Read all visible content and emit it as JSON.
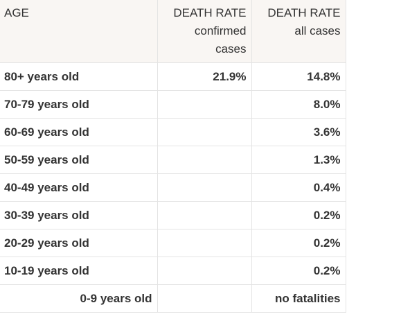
{
  "table": {
    "headers": {
      "age": "AGE",
      "confirmed": {
        "title": "DEATH RATE",
        "line2": "confirmed",
        "line3": "cases"
      },
      "all": {
        "title": "DEATH RATE",
        "line2": "all cases"
      }
    },
    "rows": [
      {
        "age": "80+ years old",
        "confirmed": "21.9%",
        "all": "14.8%"
      },
      {
        "age": "70-79 years old",
        "confirmed": "",
        "all": "8.0%"
      },
      {
        "age": "60-69 years old",
        "confirmed": "",
        "all": "3.6%"
      },
      {
        "age": "50-59 years old",
        "confirmed": "",
        "all": "1.3%"
      },
      {
        "age": "40-49 years old",
        "confirmed": "",
        "all": "0.4%"
      },
      {
        "age": "30-39 years old",
        "confirmed": "",
        "all": "0.2%"
      },
      {
        "age": "20-29 years old",
        "confirmed": "",
        "all": "0.2%"
      },
      {
        "age": "10-19 years old",
        "confirmed": "",
        "all": "0.2%"
      },
      {
        "age": "0-9 years old",
        "confirmed": "",
        "all": "no fatalities"
      }
    ]
  }
}
